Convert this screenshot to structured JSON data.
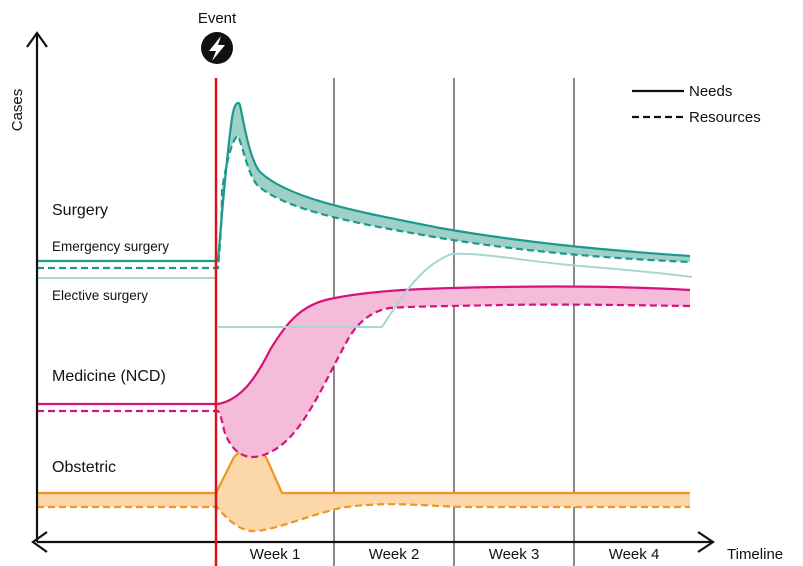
{
  "labels": {
    "event": "Event",
    "y_axis": "Cases",
    "x_axis": "Timeline"
  },
  "legend": {
    "needs": "Needs",
    "resources": "Resources"
  },
  "weeks": [
    "Week 1",
    "Week 2",
    "Week 3",
    "Week 4"
  ],
  "categories": {
    "surgery": "Surgery",
    "emergency_surgery": "Emergency surgery",
    "elective_surgery": "Elective surgery",
    "medicine": "Medicine (NCD)",
    "obstetric": "Obstetric"
  },
  "icons": {
    "event": "lightning-bolt-icon"
  },
  "colors": {
    "surgery": "#1a9a8c",
    "surgery_gap_fill": "#9fd0c8",
    "elective": "#a8d6d0",
    "medicine": "#d6127e",
    "medicine_gap_fill": "#f4bcd8",
    "obstetric": "#f0961e",
    "obstetric_gap_fill": "#fbd7aa",
    "event_line": "#d9141c",
    "axis": "#111111"
  }
}
